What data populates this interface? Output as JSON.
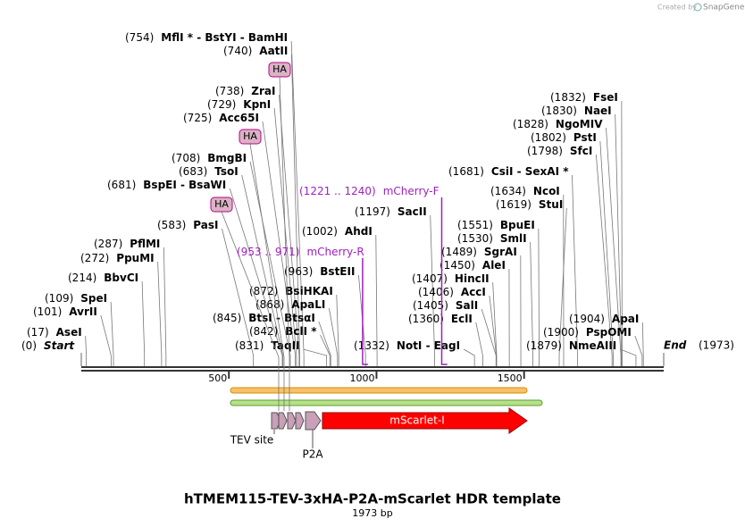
{
  "header": {
    "created_by": "Created by",
    "brand": "SnapGene"
  },
  "map": {
    "start": {
      "pos": "(0)",
      "name": "Start"
    },
    "end": {
      "name": "End",
      "pos": "(1973)"
    },
    "ruler": [
      500,
      1000,
      1500
    ],
    "sites": [
      {
        "pos": "(754)",
        "name": "MflI * - BstYI - BamHI"
      },
      {
        "pos": "(740)",
        "name": "AatII"
      },
      {
        "pos": "(738)",
        "name": "ZraI"
      },
      {
        "pos": "(729)",
        "name": "KpnI"
      },
      {
        "pos": "(725)",
        "name": "Acc65I"
      },
      {
        "pos": "(708)",
        "name": "BmgBI"
      },
      {
        "pos": "(683)",
        "name": "TsoI"
      },
      {
        "pos": "(681)",
        "name": "BspEI - BsaWI"
      },
      {
        "pos": "(583)",
        "name": "PasI"
      },
      {
        "pos": "(287)",
        "name": "PflMI"
      },
      {
        "pos": "(272)",
        "name": "PpuMI"
      },
      {
        "pos": "(214)",
        "name": "BbvCI"
      },
      {
        "pos": "(109)",
        "name": "SpeI"
      },
      {
        "pos": "(101)",
        "name": "AvrII"
      },
      {
        "pos": "(17)",
        "name": "AseI"
      },
      {
        "pos": "(1002)",
        "name": "AhdI"
      },
      {
        "pos": "(963)",
        "name": "BstEII"
      },
      {
        "pos": "(872)",
        "name": "BsiHKAI"
      },
      {
        "pos": "(868)",
        "name": "ApaLI"
      },
      {
        "pos": "(845)",
        "name": "BtsI - BtsαI"
      },
      {
        "pos": "(842)",
        "name": "BclI *"
      },
      {
        "pos": "(831)",
        "name": "TaqII"
      },
      {
        "pos": "(1332)",
        "name": "NotI - EagI"
      },
      {
        "pos": "(1197)",
        "name": "SacII"
      },
      {
        "pos": "(1681)",
        "name": "CsiI - SexAI *"
      },
      {
        "pos": "(1634)",
        "name": "NcoI"
      },
      {
        "pos": "(1619)",
        "name": "StuI"
      },
      {
        "pos": "(1551)",
        "name": "BpuEI"
      },
      {
        "pos": "(1530)",
        "name": "SmlI"
      },
      {
        "pos": "(1489)",
        "name": "SgrAI"
      },
      {
        "pos": "(1450)",
        "name": "AleI"
      },
      {
        "pos": "(1407)",
        "name": "HincII"
      },
      {
        "pos": "(1406)",
        "name": "AccI"
      },
      {
        "pos": "(1405)",
        "name": "SalI"
      },
      {
        "pos": "(1360)",
        "name": "EclI"
      },
      {
        "pos": "(1832)",
        "name": "FseI"
      },
      {
        "pos": "(1830)",
        "name": "NaeI"
      },
      {
        "pos": "(1828)",
        "name": "NgoMIV"
      },
      {
        "pos": "(1802)",
        "name": "PstI"
      },
      {
        "pos": "(1798)",
        "name": "SfcI"
      },
      {
        "pos": "(1904)",
        "name": "ApaI"
      },
      {
        "pos": "(1900)",
        "name": "PspOMI"
      },
      {
        "pos": "(1879)",
        "name": "NmeAIII"
      }
    ],
    "primers": [
      {
        "range": "(1221 .. 1240)",
        "name": "mCherry-F"
      },
      {
        "range": "(953 .. 971)",
        "name": "mCherry-R"
      }
    ],
    "tags": [
      "HA",
      "HA",
      "HA"
    ],
    "features": {
      "tev": "TEV site",
      "p2a": "P2A",
      "mscarlet": "mScarlet-I"
    }
  },
  "title": "hTMEM115-TEV-3xHA-P2A-mScarlet HDR template",
  "subtitle": "1973 bp"
}
